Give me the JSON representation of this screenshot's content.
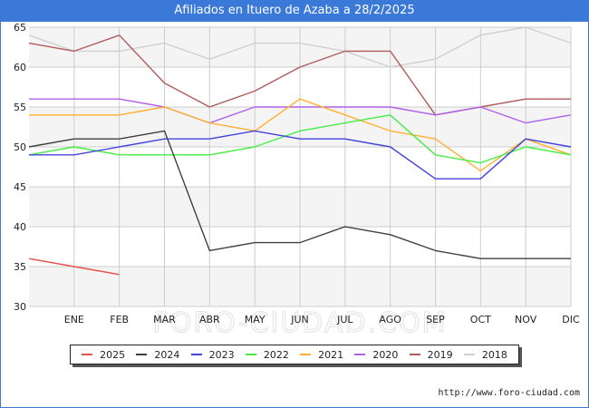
{
  "page": {
    "title": "Afiliados en Ituero de Azaba a 28/2/2025",
    "source_url": "http://www.foro-ciudad.com",
    "watermark": "FORO-CIUDAD.COM"
  },
  "colors": {
    "title_bar": "#3b79d9",
    "plot_band": "#f4f4f4",
    "grid": "#cccccc"
  },
  "chart_data": {
    "type": "line",
    "title": "Afiliados en Ituero de Azaba a 28/2/2025",
    "xlabel": "",
    "ylabel": "",
    "categories": [
      "DIC",
      "ENE",
      "FEB",
      "MAR",
      "ABR",
      "MAY",
      "JUN",
      "JUL",
      "AGO",
      "SEP",
      "OCT",
      "NOV",
      "DIC"
    ],
    "x_tick_labels": [
      "ENE",
      "FEB",
      "MAR",
      "ABR",
      "MAY",
      "JUN",
      "JUL",
      "AGO",
      "SEP",
      "OCT",
      "NOV",
      "DIC"
    ],
    "ylim": [
      30,
      65
    ],
    "y_ticks": [
      30,
      35,
      40,
      45,
      50,
      55,
      60,
      65
    ],
    "grid": true,
    "legend_position": "bottom",
    "series": [
      {
        "name": "2025",
        "color": "#e8504a",
        "values": [
          36,
          35,
          34,
          null,
          null,
          null,
          null,
          null,
          null,
          null,
          null,
          null,
          null
        ]
      },
      {
        "name": "2024",
        "color": "#404040",
        "values": [
          50,
          51,
          51,
          52,
          37,
          38,
          38,
          40,
          39,
          37,
          36,
          36,
          36
        ]
      },
      {
        "name": "2023",
        "color": "#4444dd",
        "values": [
          49,
          49,
          50,
          51,
          51,
          52,
          51,
          51,
          50,
          46,
          46,
          51,
          50
        ]
      },
      {
        "name": "2022",
        "color": "#44ee44",
        "values": [
          49,
          50,
          49,
          49,
          49,
          50,
          52,
          53,
          54,
          49,
          48,
          50,
          49
        ]
      },
      {
        "name": "2021",
        "color": "#ffb030",
        "values": [
          54,
          54,
          54,
          55,
          53,
          52,
          56,
          54,
          52,
          51,
          47,
          51,
          49
        ]
      },
      {
        "name": "2020",
        "color": "#b060e8",
        "values": [
          56,
          56,
          56,
          55,
          53,
          55,
          55,
          55,
          55,
          54,
          55,
          53,
          54
        ]
      },
      {
        "name": "2019",
        "color": "#b05c5c",
        "values": [
          63,
          62,
          64,
          58,
          55,
          57,
          60,
          62,
          62,
          54,
          55,
          56,
          56
        ]
      },
      {
        "name": "2018",
        "color": "#d0d0d0",
        "values": [
          64,
          62,
          62,
          63,
          61,
          63,
          63,
          62,
          60,
          61,
          64,
          65,
          63
        ]
      }
    ]
  }
}
